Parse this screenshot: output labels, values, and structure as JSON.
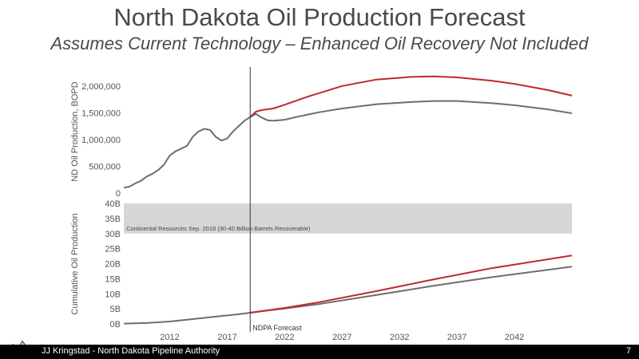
{
  "slide": {
    "title": "North Dakota Oil Production Forecast",
    "subtitle": "Assumes Current Technology – Enhanced Oil Recovery Not Included",
    "footer_text": "JJ Kringstad - North Dakota Pipeline Authority",
    "page_number": "7"
  },
  "chart_data": [
    {
      "type": "line",
      "ylabel": "ND Oil Production, BOPD",
      "x_ticks": [
        "2012",
        "2017",
        "2022",
        "2027",
        "2032",
        "2037",
        "2042"
      ],
      "xlim": [
        2008,
        2047
      ],
      "ylim": [
        0,
        2250000
      ],
      "y_ticks": [
        0,
        500000,
        1000000,
        1500000,
        2000000
      ],
      "y_tick_labels": [
        "0",
        "500,000",
        "1,000,000",
        "1,500,000",
        "2,000,000"
      ],
      "colors": {
        "historical": "#6d6d6d",
        "high": "#c0282d"
      },
      "series": [
        {
          "key": "historical",
          "x": [
            2008.0,
            2008.5,
            2009.0,
            2009.5,
            2010.0,
            2010.5,
            2011.0,
            2011.5,
            2012.0,
            2012.5,
            2013.0,
            2013.5,
            2014.0,
            2014.5,
            2015.0,
            2015.5,
            2016.0,
            2016.5,
            2017.0,
            2017.5,
            2018.0,
            2018.5,
            2019.0
          ],
          "y": [
            100000,
            120000,
            180000,
            230000,
            310000,
            360000,
            430000,
            530000,
            700000,
            780000,
            830000,
            880000,
            1050000,
            1150000,
            1200000,
            1180000,
            1050000,
            980000,
            1020000,
            1150000,
            1250000,
            1350000,
            1420000
          ]
        },
        {
          "key": "base",
          "x": [
            2019.0,
            2019.5,
            2020.0,
            2020.5,
            2021.0,
            2022.0,
            2023.0,
            2025.0,
            2027.0,
            2030.0,
            2033.0,
            2035.0,
            2037.0,
            2040.0,
            2042.0,
            2045.0,
            2047.0
          ],
          "y": [
            1420000,
            1480000,
            1410000,
            1360000,
            1350000,
            1370000,
            1420000,
            1510000,
            1580000,
            1660000,
            1700000,
            1720000,
            1720000,
            1680000,
            1640000,
            1560000,
            1490000
          ]
        },
        {
          "key": "high",
          "x": [
            2019.0,
            2019.5,
            2020.0,
            2021.0,
            2022.0,
            2024.0,
            2027.0,
            2030.0,
            2033.0,
            2035.0,
            2037.0,
            2040.0,
            2042.0,
            2045.0,
            2047.0
          ],
          "y": [
            1420000,
            1520000,
            1550000,
            1580000,
            1650000,
            1800000,
            2000000,
            2120000,
            2170000,
            2180000,
            2160000,
            2100000,
            2040000,
            1920000,
            1820000
          ]
        }
      ]
    },
    {
      "type": "line",
      "ylabel": "Cumulative Oil Production",
      "x_ticks": [
        "2012",
        "2017",
        "2022",
        "2027",
        "2032",
        "2037",
        "2042"
      ],
      "xlim": [
        2008,
        2047
      ],
      "ylim": [
        0,
        40
      ],
      "y_ticks": [
        0,
        5,
        10,
        15,
        20,
        25,
        30,
        35,
        40
      ],
      "y_tick_labels": [
        "0B",
        "5B",
        "10B",
        "15B",
        "20B",
        "25B",
        "30B",
        "35B",
        "40B"
      ],
      "band": {
        "from": 30,
        "to": 40,
        "label": "Continental Resources Sep. 2018 (30-40 Billion Barrels Recoverable)"
      },
      "annotation": {
        "x": 2019,
        "label": "NDPA Forecast"
      },
      "series": [
        {
          "key": "base",
          "x": [
            2008,
            2010,
            2012,
            2014,
            2016,
            2018,
            2019,
            2020,
            2022,
            2025,
            2030,
            2035,
            2040,
            2047
          ],
          "y": [
            0.1,
            0.3,
            0.8,
            1.6,
            2.4,
            3.2,
            3.7,
            4.2,
            5.1,
            6.6,
            9.6,
            12.7,
            15.5,
            19.0
          ]
        },
        {
          "key": "high",
          "x": [
            2019,
            2020,
            2022,
            2025,
            2030,
            2035,
            2040,
            2047
          ],
          "y": [
            3.7,
            4.25,
            5.3,
            7.2,
            10.9,
            14.8,
            18.5,
            22.7
          ]
        }
      ]
    }
  ]
}
